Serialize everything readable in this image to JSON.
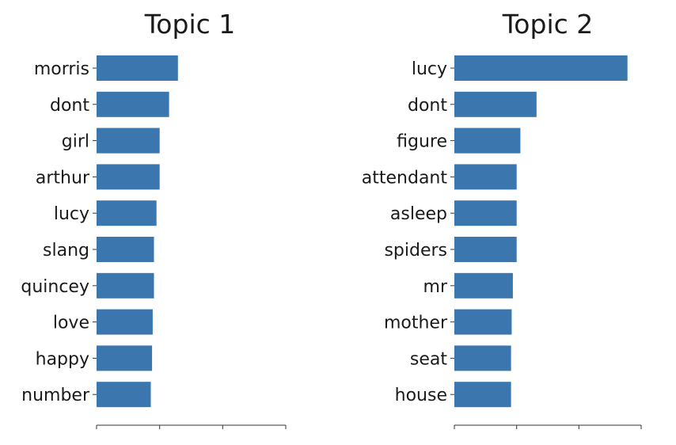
{
  "chart_data": [
    {
      "type": "bar",
      "orientation": "horizontal",
      "title": "Topic 1",
      "categories": [
        "morris",
        "dont",
        "girl",
        "arthur",
        "lucy",
        "slang",
        "quincey",
        "love",
        "happy",
        "number"
      ],
      "values": [
        0.0129,
        0.0115,
        0.01,
        0.01,
        0.0095,
        0.0091,
        0.0091,
        0.0089,
        0.0088,
        0.0086
      ],
      "xlim": [
        0,
        0.03
      ],
      "tick_labels_visible": false,
      "bar_color": "#3b76af",
      "grid": false
    },
    {
      "type": "bar",
      "orientation": "horizontal",
      "title": "Topic 2",
      "categories": [
        "lucy",
        "dont",
        "figure",
        "attendant",
        "asleep",
        "spiders",
        "mr",
        "mother",
        "seat",
        "house"
      ],
      "values": [
        0.0278,
        0.0132,
        0.0106,
        0.01,
        0.01,
        0.01,
        0.0094,
        0.0092,
        0.0091,
        0.0091
      ],
      "xlim": [
        0,
        0.03
      ],
      "tick_labels_visible": false,
      "bar_color": "#3b76af",
      "grid": false
    }
  ]
}
